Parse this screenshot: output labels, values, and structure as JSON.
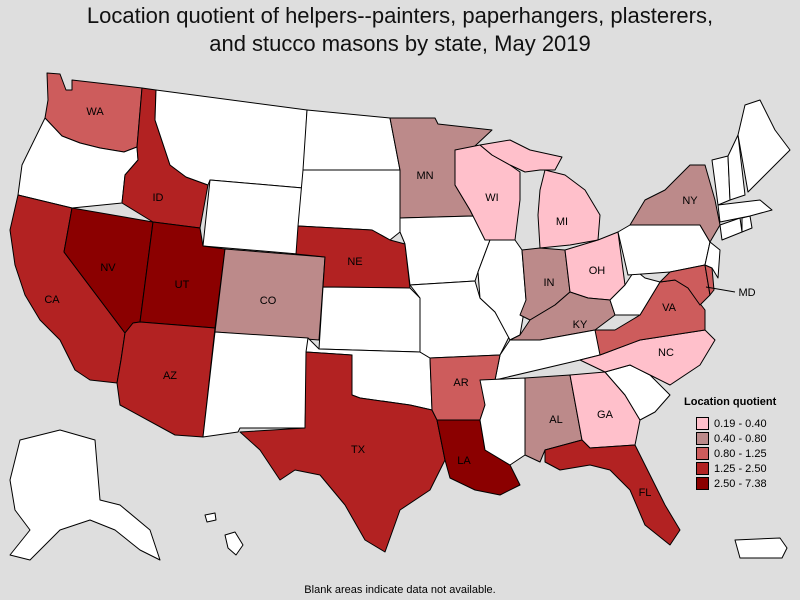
{
  "title_line1": "Location quotient of helpers--painters, paperhangers, plasterers,",
  "title_line2": "and stucco masons by state, May 2019",
  "footnote": "Blank areas indicate data not available.",
  "legend": {
    "title": "Location quotient",
    "items": [
      {
        "label": "0.19 - 0.40",
        "color": "#ffc0cb"
      },
      {
        "label": "0.40 - 0.80",
        "color": "#bc8a8a"
      },
      {
        "label": "0.80 - 1.25",
        "color": "#cd5c5c"
      },
      {
        "label": "1.25 - 2.50",
        "color": "#b22222"
      },
      {
        "label": "2.50 - 7.38",
        "color": "#8b0000"
      }
    ]
  },
  "no_data_color": "#ffffff",
  "state_labels": {
    "WA": "WA",
    "ID": "ID",
    "NV": "NV",
    "UT": "UT",
    "CA": "CA",
    "AZ": "AZ",
    "CO": "CO",
    "NE": "NE",
    "TX": "TX",
    "MN": "MN",
    "WI": "WI",
    "MI": "MI",
    "IN": "IN",
    "OH": "OH",
    "KY": "KY",
    "AR": "AR",
    "LA": "LA",
    "AL": "AL",
    "GA": "GA",
    "FL": "FL",
    "NC": "NC",
    "VA": "VA",
    "NY": "NY",
    "MD": "MD"
  },
  "state_bins": {
    "WA": 2,
    "ID": 3,
    "NV": 4,
    "UT": 4,
    "CA": 3,
    "AZ": 3,
    "CO": 1,
    "NE": 3,
    "TX": 3,
    "MN": 1,
    "WI": 0,
    "MI": 0,
    "IN": 1,
    "OH": 0,
    "KY": 1,
    "AR": 2,
    "LA": 4,
    "AL": 1,
    "GA": 0,
    "FL": 3,
    "NC": 0,
    "VA": 2,
    "NY": 1,
    "MD": 2,
    "DE": 2,
    "OR": null,
    "MT": null,
    "WY": null,
    "ND": null,
    "SD": null,
    "NM": null,
    "KS": null,
    "OK": null,
    "IA": null,
    "MO": null,
    "IL": null,
    "TN": null,
    "MS": null,
    "SC": null,
    "WV": null,
    "PA": null,
    "NJ": null,
    "CT": null,
    "RI": null,
    "MA": null,
    "VT": null,
    "NH": null,
    "ME": null,
    "AK": null,
    "HI": null,
    "PR": null
  }
}
